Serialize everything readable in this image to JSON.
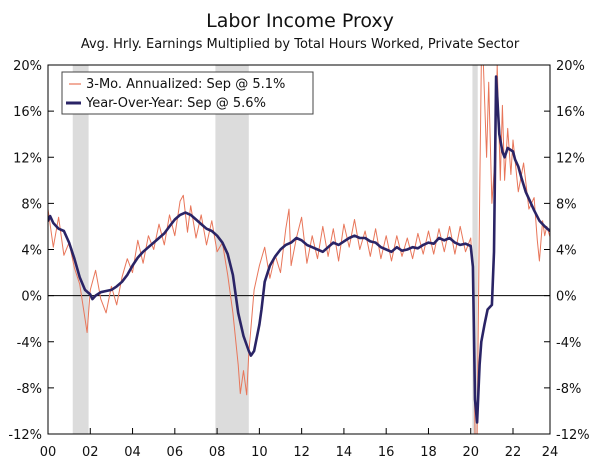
{
  "chart_data": {
    "type": "line",
    "title": "Labor Income Proxy",
    "subtitle": "Avg. Hrly. Earnings Multiplied by Total Hours Worked, Private Sector",
    "xlabel": "",
    "ylabel": "",
    "x_range": [
      2000.0,
      2023.75
    ],
    "ylim": [
      -12,
      20
    ],
    "y_ticks": [
      -12,
      -8,
      -4,
      0,
      4,
      8,
      12,
      16,
      20
    ],
    "y_tick_labels": [
      "-12%",
      "-8%",
      "-4%",
      "0%",
      "4%",
      "8%",
      "12%",
      "16%",
      "20%"
    ],
    "x_ticks": [
      2000,
      2002,
      2004,
      2006,
      2008,
      2010,
      2012,
      2014,
      2016,
      2018,
      2020,
      2022,
      2024
    ],
    "x_tick_labels": [
      "00",
      "02",
      "04",
      "06",
      "08",
      "10",
      "12",
      "14",
      "16",
      "18",
      "20",
      "22",
      "24"
    ],
    "grid": false,
    "legend_position": "top-left",
    "recessions": [
      [
        2001.17,
        2001.92
      ],
      [
        2007.92,
        2009.5
      ],
      [
        2020.08,
        2020.33
      ]
    ],
    "series": [
      {
        "name": "3-Mo. Annualized: Sep @ 5.1%",
        "color": "#e8765a",
        "width": 1,
        "points": [
          [
            2000.0,
            7.5
          ],
          [
            2000.25,
            4.2
          ],
          [
            2000.5,
            6.8
          ],
          [
            2000.75,
            3.5
          ],
          [
            2001.0,
            4.6
          ],
          [
            2001.25,
            2.4
          ],
          [
            2001.5,
            1.0
          ],
          [
            2001.75,
            -2.0
          ],
          [
            2001.85,
            -3.2
          ],
          [
            2002.0,
            0.5
          ],
          [
            2002.25,
            2.2
          ],
          [
            2002.5,
            -0.3
          ],
          [
            2002.75,
            -1.5
          ],
          [
            2003.0,
            0.8
          ],
          [
            2003.25,
            -0.8
          ],
          [
            2003.5,
            1.6
          ],
          [
            2003.75,
            3.2
          ],
          [
            2004.0,
            2.0
          ],
          [
            2004.25,
            4.8
          ],
          [
            2004.5,
            2.8
          ],
          [
            2004.75,
            5.2
          ],
          [
            2005.0,
            4.0
          ],
          [
            2005.25,
            6.2
          ],
          [
            2005.5,
            4.4
          ],
          [
            2005.75,
            7.0
          ],
          [
            2006.0,
            5.2
          ],
          [
            2006.25,
            8.2
          ],
          [
            2006.4,
            8.7
          ],
          [
            2006.6,
            5.5
          ],
          [
            2006.75,
            7.8
          ],
          [
            2007.0,
            5.0
          ],
          [
            2007.25,
            7.0
          ],
          [
            2007.5,
            4.4
          ],
          [
            2007.75,
            6.5
          ],
          [
            2008.0,
            3.8
          ],
          [
            2008.25,
            4.6
          ],
          [
            2008.5,
            1.8
          ],
          [
            2008.75,
            -1.5
          ],
          [
            2009.0,
            -6.0
          ],
          [
            2009.1,
            -8.5
          ],
          [
            2009.25,
            -6.5
          ],
          [
            2009.4,
            -8.6
          ],
          [
            2009.5,
            -5.0
          ],
          [
            2009.75,
            0.5
          ],
          [
            2010.0,
            2.6
          ],
          [
            2010.25,
            4.2
          ],
          [
            2010.5,
            1.5
          ],
          [
            2010.75,
            3.5
          ],
          [
            2011.0,
            2.0
          ],
          [
            2011.25,
            5.8
          ],
          [
            2011.4,
            7.5
          ],
          [
            2011.5,
            2.6
          ],
          [
            2011.75,
            5.0
          ],
          [
            2012.0,
            6.8
          ],
          [
            2012.25,
            2.8
          ],
          [
            2012.5,
            5.2
          ],
          [
            2012.75,
            3.2
          ],
          [
            2013.0,
            6.0
          ],
          [
            2013.25,
            3.4
          ],
          [
            2013.5,
            5.8
          ],
          [
            2013.75,
            3.0
          ],
          [
            2014.0,
            6.2
          ],
          [
            2014.25,
            4.2
          ],
          [
            2014.5,
            6.6
          ],
          [
            2014.75,
            4.0
          ],
          [
            2015.0,
            5.6
          ],
          [
            2015.25,
            3.4
          ],
          [
            2015.5,
            5.8
          ],
          [
            2015.75,
            3.2
          ],
          [
            2016.0,
            5.2
          ],
          [
            2016.25,
            3.0
          ],
          [
            2016.5,
            5.2
          ],
          [
            2016.75,
            3.4
          ],
          [
            2017.0,
            5.0
          ],
          [
            2017.25,
            3.2
          ],
          [
            2017.5,
            5.4
          ],
          [
            2017.75,
            3.6
          ],
          [
            2018.0,
            5.6
          ],
          [
            2018.25,
            3.6
          ],
          [
            2018.5,
            5.8
          ],
          [
            2018.75,
            3.8
          ],
          [
            2019.0,
            6.0
          ],
          [
            2019.25,
            3.6
          ],
          [
            2019.5,
            6.0
          ],
          [
            2019.75,
            3.8
          ],
          [
            2020.0,
            5.0
          ],
          [
            2020.1,
            2.0
          ],
          [
            2020.2,
            -12.0
          ],
          [
            2020.3,
            -12.0
          ],
          [
            2020.42,
            8.0
          ],
          [
            2020.5,
            20.0
          ],
          [
            2020.6,
            20.0
          ],
          [
            2020.75,
            12.0
          ],
          [
            2020.85,
            18.5
          ],
          [
            2021.0,
            8.0
          ],
          [
            2021.15,
            12.0
          ],
          [
            2021.25,
            20.0
          ],
          [
            2021.4,
            10.0
          ],
          [
            2021.5,
            16.5
          ],
          [
            2021.6,
            10.0
          ],
          [
            2021.75,
            14.5
          ],
          [
            2021.9,
            10.5
          ],
          [
            2022.0,
            13.5
          ],
          [
            2022.25,
            9.0
          ],
          [
            2022.5,
            11.5
          ],
          [
            2022.75,
            7.5
          ],
          [
            2023.0,
            8.5
          ],
          [
            2023.15,
            4.8
          ],
          [
            2023.25,
            3.0
          ],
          [
            2023.4,
            6.5
          ],
          [
            2023.5,
            5.2
          ],
          [
            2023.6,
            6.0
          ],
          [
            2023.75,
            5.1
          ]
        ]
      },
      {
        "name": "Year-Over-Year: Sep @ 5.6%",
        "color": "#2a2466",
        "width": 2.6,
        "points": [
          [
            2000.0,
            6.5
          ],
          [
            2000.1,
            6.9
          ],
          [
            2000.25,
            6.3
          ],
          [
            2000.5,
            5.8
          ],
          [
            2000.75,
            5.6
          ],
          [
            2001.0,
            4.6
          ],
          [
            2001.25,
            3.2
          ],
          [
            2001.5,
            1.6
          ],
          [
            2001.75,
            0.5
          ],
          [
            2002.0,
            0.1
          ],
          [
            2002.1,
            -0.3
          ],
          [
            2002.25,
            0.0
          ],
          [
            2002.5,
            0.3
          ],
          [
            2002.75,
            0.4
          ],
          [
            2003.0,
            0.5
          ],
          [
            2003.25,
            0.8
          ],
          [
            2003.5,
            1.2
          ],
          [
            2003.75,
            1.8
          ],
          [
            2004.0,
            2.6
          ],
          [
            2004.25,
            3.3
          ],
          [
            2004.5,
            3.8
          ],
          [
            2004.75,
            4.2
          ],
          [
            2005.0,
            4.6
          ],
          [
            2005.25,
            5.0
          ],
          [
            2005.5,
            5.4
          ],
          [
            2005.75,
            6.0
          ],
          [
            2006.0,
            6.6
          ],
          [
            2006.25,
            7.0
          ],
          [
            2006.5,
            7.2
          ],
          [
            2006.75,
            7.0
          ],
          [
            2007.0,
            6.6
          ],
          [
            2007.25,
            6.2
          ],
          [
            2007.5,
            5.8
          ],
          [
            2007.75,
            5.6
          ],
          [
            2008.0,
            5.2
          ],
          [
            2008.25,
            4.6
          ],
          [
            2008.5,
            3.6
          ],
          [
            2008.75,
            1.8
          ],
          [
            2009.0,
            -1.5
          ],
          [
            2009.25,
            -3.5
          ],
          [
            2009.5,
            -4.8
          ],
          [
            2009.6,
            -5.2
          ],
          [
            2009.75,
            -4.8
          ],
          [
            2010.0,
            -2.5
          ],
          [
            2010.1,
            -1.2
          ],
          [
            2010.25,
            1.2
          ],
          [
            2010.5,
            2.6
          ],
          [
            2010.75,
            3.4
          ],
          [
            2011.0,
            4.0
          ],
          [
            2011.25,
            4.4
          ],
          [
            2011.5,
            4.6
          ],
          [
            2011.75,
            5.0
          ],
          [
            2012.0,
            4.8
          ],
          [
            2012.25,
            4.4
          ],
          [
            2012.5,
            4.2
          ],
          [
            2012.75,
            4.0
          ],
          [
            2013.0,
            3.8
          ],
          [
            2013.25,
            4.2
          ],
          [
            2013.5,
            4.6
          ],
          [
            2013.75,
            4.4
          ],
          [
            2014.0,
            4.7
          ],
          [
            2014.25,
            5.0
          ],
          [
            2014.5,
            5.2
          ],
          [
            2014.75,
            5.0
          ],
          [
            2015.0,
            5.0
          ],
          [
            2015.25,
            4.7
          ],
          [
            2015.5,
            4.6
          ],
          [
            2015.75,
            4.2
          ],
          [
            2016.0,
            4.0
          ],
          [
            2016.25,
            3.8
          ],
          [
            2016.5,
            4.2
          ],
          [
            2016.75,
            3.9
          ],
          [
            2017.0,
            4.0
          ],
          [
            2017.25,
            4.2
          ],
          [
            2017.5,
            4.1
          ],
          [
            2017.75,
            4.4
          ],
          [
            2018.0,
            4.6
          ],
          [
            2018.25,
            4.5
          ],
          [
            2018.5,
            5.0
          ],
          [
            2018.75,
            4.8
          ],
          [
            2019.0,
            5.0
          ],
          [
            2019.25,
            4.6
          ],
          [
            2019.5,
            4.4
          ],
          [
            2019.75,
            4.5
          ],
          [
            2020.0,
            4.3
          ],
          [
            2020.1,
            2.5
          ],
          [
            2020.2,
            -9.0
          ],
          [
            2020.3,
            -11.0
          ],
          [
            2020.42,
            -6.0
          ],
          [
            2020.5,
            -4.0
          ],
          [
            2020.65,
            -2.5
          ],
          [
            2020.8,
            -1.2
          ],
          [
            2021.0,
            -0.8
          ],
          [
            2021.1,
            3.8
          ],
          [
            2021.2,
            19.0
          ],
          [
            2021.35,
            14.0
          ],
          [
            2021.5,
            12.5
          ],
          [
            2021.6,
            12.0
          ],
          [
            2021.75,
            12.8
          ],
          [
            2022.0,
            12.5
          ],
          [
            2022.1,
            11.8
          ],
          [
            2022.25,
            11.2
          ],
          [
            2022.4,
            10.2
          ],
          [
            2022.5,
            9.6
          ],
          [
            2022.6,
            9.0
          ],
          [
            2022.75,
            8.4
          ],
          [
            2022.9,
            7.8
          ],
          [
            2023.0,
            7.4
          ],
          [
            2023.25,
            6.5
          ],
          [
            2023.5,
            6.0
          ],
          [
            2023.75,
            5.6
          ]
        ]
      }
    ]
  }
}
